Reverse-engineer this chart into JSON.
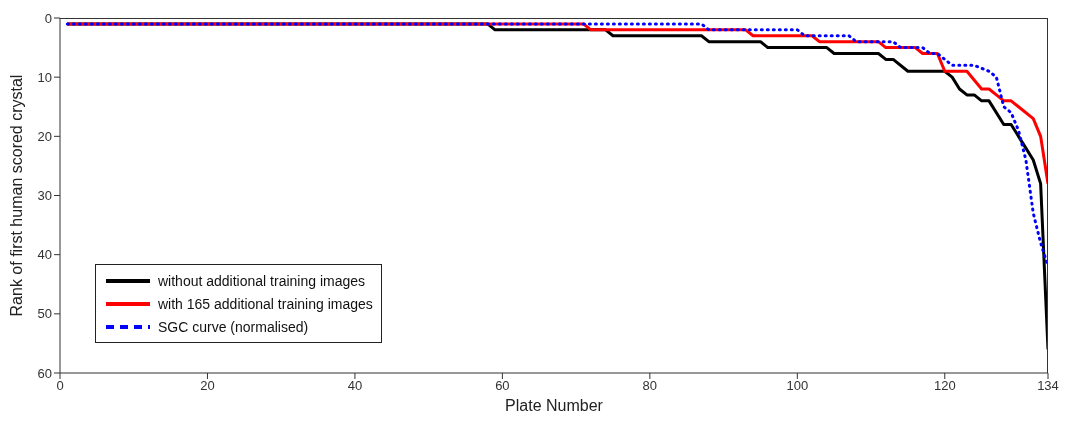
{
  "chart_data": {
    "type": "line",
    "xlabel": "Plate Number",
    "ylabel": "Rank of first human scored crystal",
    "xlim": [
      0,
      134
    ],
    "xticks": [
      0,
      20,
      40,
      60,
      80,
      100,
      120,
      134
    ],
    "ylim": [
      60,
      0
    ],
    "yticks": [
      0,
      10,
      20,
      30,
      40,
      50,
      60
    ],
    "legend": "bottom left",
    "marker": "none",
    "series": [
      {
        "name": "without additional training images",
        "color": "#000000",
        "line_style": "solid",
        "x": [
          1,
          58,
          59,
          74,
          75,
          87,
          88,
          95,
          96,
          104,
          105,
          111,
          112,
          113,
          115,
          120,
          121,
          122,
          123,
          124,
          125,
          126,
          128,
          129,
          131,
          132,
          133,
          134
        ],
        "values": [
          1,
          1,
          2,
          2,
          3,
          3,
          4,
          4,
          5,
          5,
          6,
          6,
          7,
          7,
          9,
          9,
          10,
          12,
          13,
          13,
          14,
          14,
          18,
          18,
          22,
          24,
          28,
          56
        ]
      },
      {
        "name": "with 165 additional training images",
        "color": "#ff0000",
        "line_style": "solid",
        "x": [
          1,
          71,
          72,
          93,
          94,
          102,
          103,
          111,
          112,
          116,
          117,
          119,
          120,
          123,
          125,
          126,
          127,
          128,
          129,
          130,
          132,
          133,
          134
        ],
        "values": [
          1,
          1,
          2,
          2,
          3,
          3,
          4,
          4,
          5,
          5,
          6,
          6,
          9,
          9,
          12,
          12,
          13,
          14,
          14,
          15,
          17,
          20,
          28
        ]
      },
      {
        "name": "SGC curve (normalised)",
        "color": "#0000ff",
        "line_style": "dotted",
        "x": [
          1,
          87,
          88,
          100,
          101,
          107,
          108,
          113,
          114,
          117,
          118,
          119,
          120,
          121,
          124,
          126,
          127,
          128,
          129,
          130,
          131,
          132,
          133,
          134
        ],
        "values": [
          1,
          1,
          2,
          2,
          3,
          3,
          4,
          4,
          5,
          5,
          6,
          6,
          7,
          8,
          8,
          9,
          10,
          15,
          16,
          19,
          24,
          33,
          38,
          42
        ]
      }
    ]
  }
}
